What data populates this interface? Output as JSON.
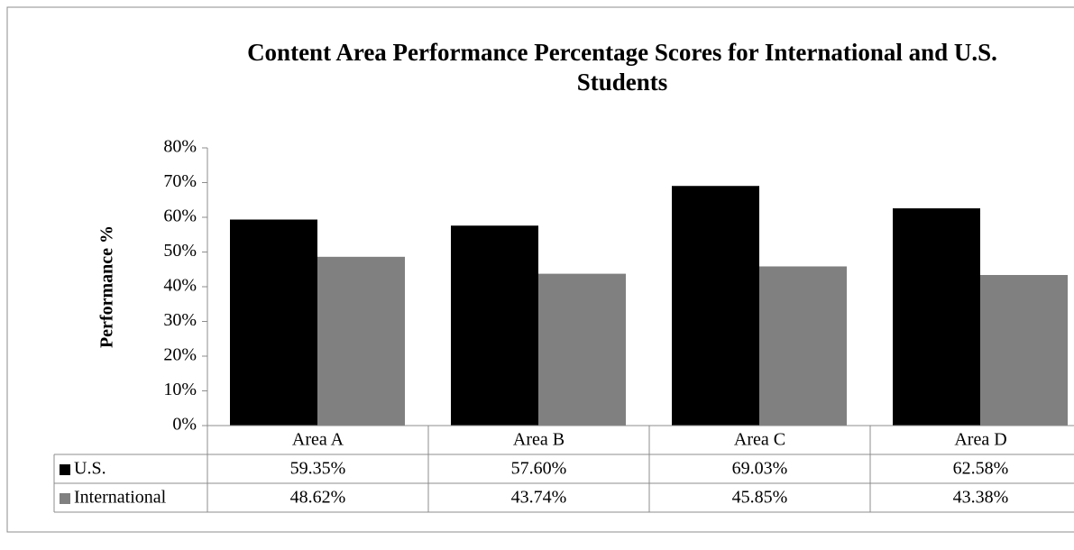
{
  "chart_data": {
    "type": "bar",
    "title": "Content Area Performance Percentage Scores for International and U.S. Students",
    "ylabel": "Performance %",
    "categories": [
      "Area A",
      "Area B",
      "Area C",
      "Area D"
    ],
    "series": [
      {
        "name": "U.S.",
        "color": "#000000",
        "values": [
          59.35,
          57.6,
          69.03,
          62.58
        ],
        "value_labels": [
          "59.35%",
          "57.60%",
          "69.03%",
          "62.58%"
        ]
      },
      {
        "name": "International",
        "color": "#808080",
        "values": [
          48.62,
          43.74,
          45.85,
          43.38
        ],
        "value_labels": [
          "48.62%",
          "43.74%",
          "45.85%",
          "43.38%"
        ]
      }
    ],
    "ylim": [
      0,
      80
    ],
    "yticks": [
      {
        "value": 0,
        "label": "0%"
      },
      {
        "value": 10,
        "label": "10%"
      },
      {
        "value": 20,
        "label": "20%"
      },
      {
        "value": 30,
        "label": "30%"
      },
      {
        "value": 40,
        "label": "40%"
      },
      {
        "value": 50,
        "label": "50%"
      },
      {
        "value": 60,
        "label": "60%"
      },
      {
        "value": 70,
        "label": "70%"
      },
      {
        "value": 80,
        "label": "80%"
      }
    ]
  }
}
